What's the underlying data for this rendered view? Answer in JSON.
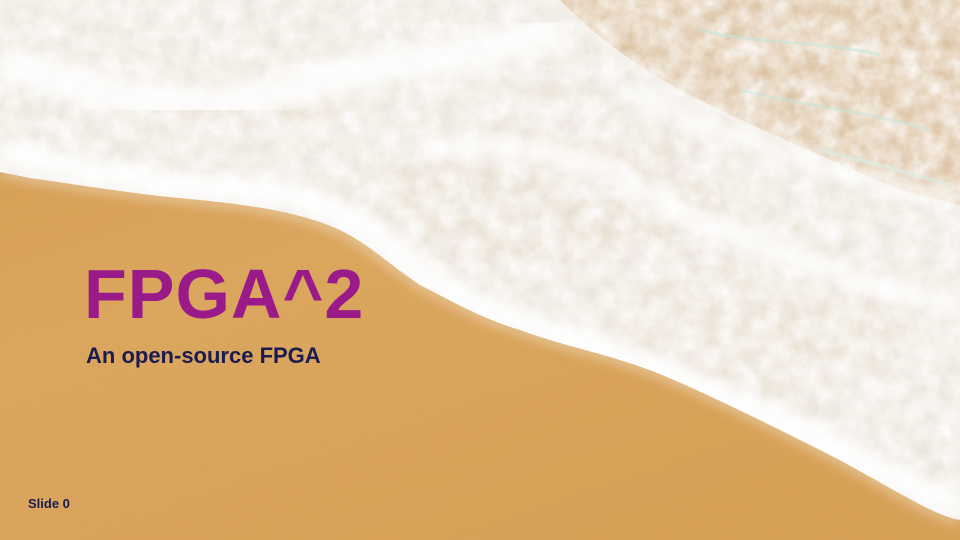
{
  "slide": {
    "title": "FPGA^2",
    "subtitle": "An open-source FPGA",
    "slide_number": "Slide 0"
  },
  "colors": {
    "title": "#9b1a8a",
    "subtitle": "#1b1b4f",
    "slide_number": "#1b1b4f",
    "sand": "#d9a35a",
    "sea": "#1f9484",
    "foam": "#f4f5f3"
  },
  "background": {
    "description_icon": "beach-waves-photo"
  }
}
